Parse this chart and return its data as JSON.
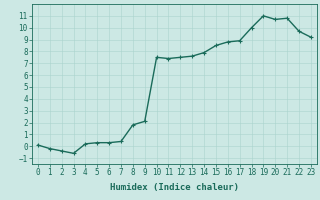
{
  "x": [
    0,
    1,
    2,
    3,
    4,
    5,
    6,
    7,
    8,
    9,
    10,
    11,
    12,
    13,
    14,
    15,
    16,
    17,
    18,
    19,
    20,
    21,
    22,
    23
  ],
  "y": [
    0.1,
    -0.2,
    -0.4,
    -0.6,
    0.2,
    0.3,
    0.3,
    0.4,
    1.8,
    2.1,
    7.5,
    7.4,
    7.5,
    7.6,
    7.9,
    8.5,
    8.8,
    8.9,
    10.0,
    11.0,
    10.7,
    10.8,
    9.7,
    9.2
  ],
  "line_color": "#1a6b5a",
  "marker": "+",
  "marker_size": 3,
  "marker_color": "#1a6b5a",
  "bg_color": "#cce8e4",
  "grid_color_major": "#aad4ce",
  "grid_color_minor": "#c2e4e0",
  "xlabel": "Humidex (Indice chaleur)",
  "xlabel_fontsize": 6.5,
  "ylim": [
    -1.5,
    12
  ],
  "xlim": [
    -0.5,
    23.5
  ],
  "yticks": [
    -1,
    0,
    1,
    2,
    3,
    4,
    5,
    6,
    7,
    8,
    9,
    10,
    11
  ],
  "xticks": [
    0,
    1,
    2,
    3,
    4,
    5,
    6,
    7,
    8,
    9,
    10,
    11,
    12,
    13,
    14,
    15,
    16,
    17,
    18,
    19,
    20,
    21,
    22,
    23
  ],
  "tick_fontsize": 5.5,
  "linewidth": 1.0
}
